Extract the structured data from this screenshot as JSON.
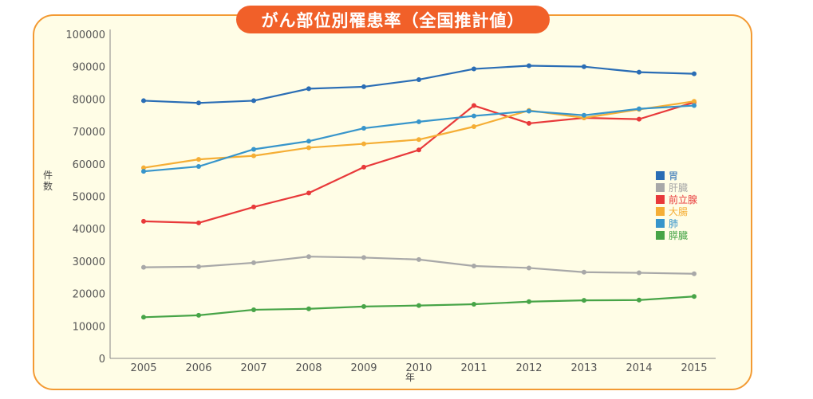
{
  "title": "がん部位別罹患率（全国推計値）",
  "chart_data": {
    "type": "line",
    "title": "がん部位別罹患率（全国推計値）",
    "xlabel": "年",
    "ylabel": "件数",
    "x": [
      2005,
      2006,
      2007,
      2008,
      2009,
      2010,
      2011,
      2012,
      2013,
      2014,
      2015
    ],
    "ylim": [
      0,
      100000
    ],
    "yticks": [
      0,
      10000,
      20000,
      30000,
      40000,
      50000,
      60000,
      70000,
      80000,
      90000,
      100000
    ],
    "legend": "right",
    "grid": false,
    "series": [
      {
        "name": "胃",
        "color": "#2a6db5",
        "values": [
          79500,
          78800,
          79500,
          83200,
          83800,
          86000,
          89300,
          90300,
          90000,
          88300,
          87800
        ]
      },
      {
        "name": "肝臓",
        "color": "#a8a8a8",
        "values": [
          28100,
          28300,
          29500,
          31400,
          31100,
          30500,
          28500,
          27900,
          26600,
          26400,
          26100
        ]
      },
      {
        "name": "前立腺",
        "color": "#e8393a",
        "values": [
          42300,
          41800,
          46700,
          51000,
          59000,
          64300,
          78000,
          72500,
          74200,
          73800,
          79000
        ]
      },
      {
        "name": "大腸",
        "color": "#f5ae35",
        "values": [
          58800,
          61400,
          62500,
          65000,
          66200,
          67500,
          71500,
          76500,
          74200,
          76800,
          79300
        ]
      },
      {
        "name": "肺",
        "color": "#3795cb",
        "values": [
          57700,
          59200,
          64500,
          67000,
          71000,
          73000,
          74800,
          76300,
          75000,
          77000,
          78000
        ]
      },
      {
        "name": "膵臓",
        "color": "#47a447",
        "values": [
          12700,
          13300,
          15000,
          15300,
          16000,
          16300,
          16700,
          17500,
          17900,
          18000,
          19100
        ]
      }
    ]
  }
}
